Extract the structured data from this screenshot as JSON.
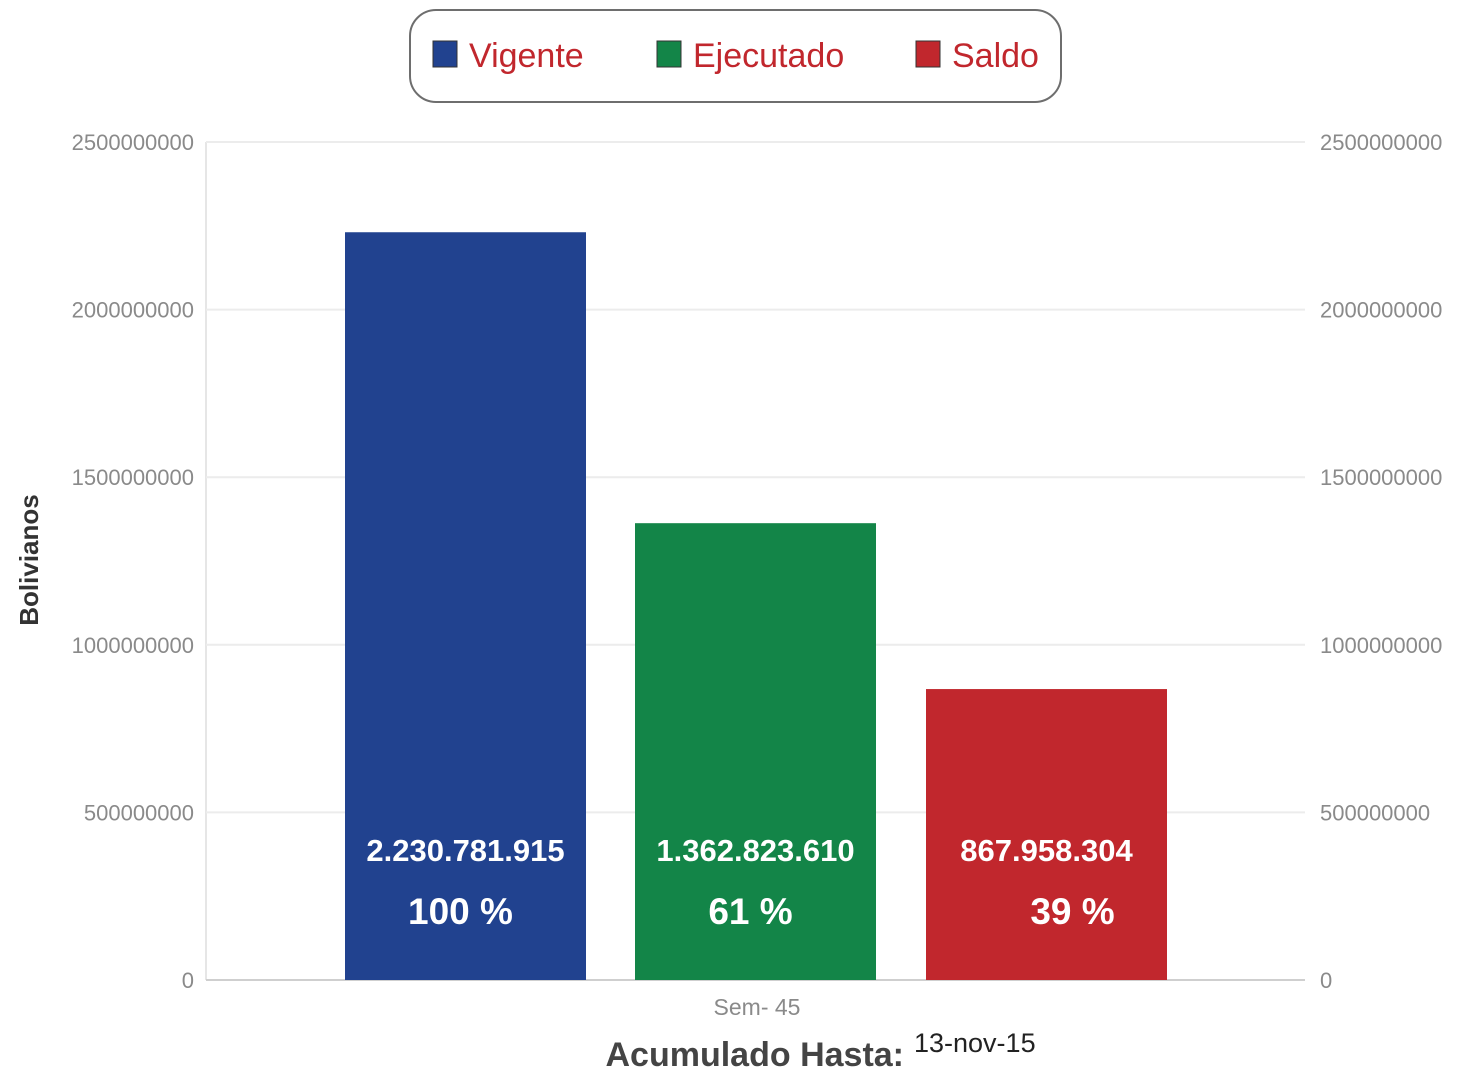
{
  "chart_data": {
    "type": "bar",
    "categories": [
      "Sem- 45"
    ],
    "series": [
      {
        "name": "Vigente",
        "value": 2230781915,
        "value_label": "2.230.781.915",
        "percent_label": "100 %",
        "color": "#21428f"
      },
      {
        "name": "Ejecutado",
        "value": 1362823610,
        "value_label": "1.362.823.610",
        "percent_label": "61 %",
        "color": "#138548"
      },
      {
        "name": "Saldo",
        "value": 867958304,
        "value_label": "867.958.304",
        "percent_label": "39 %",
        "color": "#c1272d"
      }
    ],
    "ylabel": "Bolivianos",
    "ylim": [
      0,
      2500000000
    ],
    "yticks": [
      "0",
      "500000000",
      "1000000000",
      "1500000000",
      "2000000000",
      "2500000000"
    ],
    "secondary_yticks": [
      "0",
      "500000000",
      "1000000000",
      "1500000000",
      "2000000000",
      "2500000000"
    ],
    "xlabel": "Acumulado Hasta:",
    "xlabel_date": "13-nov-15",
    "legend": {
      "placement": "top",
      "text_color": "#c1272d"
    },
    "grid": true
  }
}
